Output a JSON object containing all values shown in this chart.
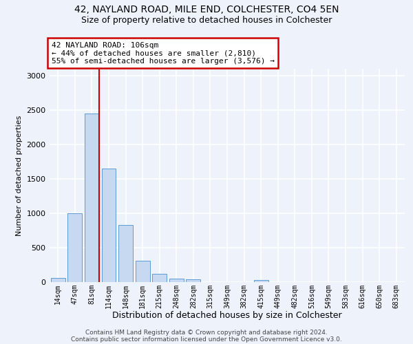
{
  "title1": "42, NAYLAND ROAD, MILE END, COLCHESTER, CO4 5EN",
  "title2": "Size of property relative to detached houses in Colchester",
  "xlabel": "Distribution of detached houses by size in Colchester",
  "ylabel": "Number of detached properties",
  "bin_labels": [
    "14sqm",
    "47sqm",
    "81sqm",
    "114sqm",
    "148sqm",
    "181sqm",
    "215sqm",
    "248sqm",
    "282sqm",
    "315sqm",
    "349sqm",
    "382sqm",
    "415sqm",
    "449sqm",
    "482sqm",
    "516sqm",
    "549sqm",
    "583sqm",
    "616sqm",
    "650sqm",
    "683sqm"
  ],
  "bar_values": [
    60,
    1000,
    2450,
    1650,
    830,
    310,
    120,
    55,
    45,
    0,
    0,
    0,
    30,
    0,
    0,
    0,
    0,
    0,
    0,
    0,
    0
  ],
  "bar_color": "#c6d9f0",
  "bar_edge_color": "#5b9bd5",
  "red_line_color": "#cc0000",
  "annotation_text": "42 NAYLAND ROAD: 106sqm\n← 44% of detached houses are smaller (2,810)\n55% of semi-detached houses are larger (3,576) →",
  "annotation_box_color": "#cc0000",
  "ylim": [
    0,
    3100
  ],
  "yticks": [
    0,
    500,
    1000,
    1500,
    2000,
    2500,
    3000
  ],
  "bg_color": "#edf2fb",
  "grid_color": "#ffffff",
  "footer1": "Contains HM Land Registry data © Crown copyright and database right 2024.",
  "footer2": "Contains public sector information licensed under the Open Government Licence v3.0."
}
